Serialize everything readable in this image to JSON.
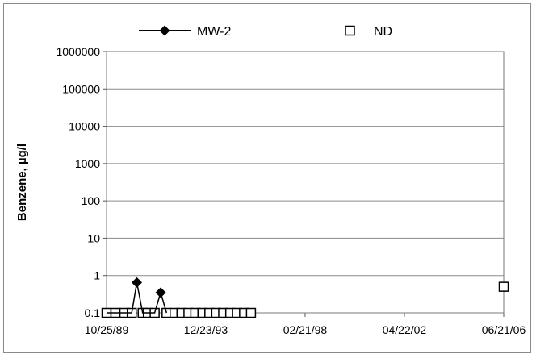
{
  "chart_data": {
    "type": "line",
    "y_scale": "log",
    "ylabel": "Benzene, µg/l",
    "xlabel": "",
    "xlim": [
      "1989-10-25",
      "2006-06-21"
    ],
    "ylim": [
      0.1,
      1000000
    ],
    "y_ticks": [
      0.1,
      1,
      10,
      100,
      1000,
      10000,
      100000,
      1000000
    ],
    "y_tick_labels": [
      "0.1",
      "1",
      "10",
      "100",
      "1000",
      "10000",
      "100000",
      "1000000"
    ],
    "x_ticks": [
      "1989-10-25",
      "1993-12-23",
      "1998-02-21",
      "2002-04-22",
      "2006-06-21"
    ],
    "x_tick_labels": [
      "10/25/89",
      "12/23/93",
      "02/21/98",
      "04/22/02",
      "06/21/06"
    ],
    "grid": "horizontal",
    "legend_position": "top",
    "series": [
      {
        "name": "MW-2",
        "marker": "diamond",
        "color": "#000000",
        "points": [
          {
            "x": "1989-10-25",
            "y": 0.1
          },
          {
            "x": "1990-03-10",
            "y": 0.1
          },
          {
            "x": "1990-07-25",
            "y": 0.1
          },
          {
            "x": "1990-11-15",
            "y": 0.1
          },
          {
            "x": "1991-02-01",
            "y": 0.65
          },
          {
            "x": "1991-05-01",
            "y": 0.1
          },
          {
            "x": "1991-07-20",
            "y": 0.1
          },
          {
            "x": "1991-11-01",
            "y": 0.1
          },
          {
            "x": "1992-02-01",
            "y": 0.35
          },
          {
            "x": "1992-05-01",
            "y": 0.1
          }
        ]
      },
      {
        "name": "ND",
        "marker": "square-open",
        "color": "#000000",
        "points": [
          {
            "x": "1989-10-25",
            "y": 0.1
          },
          {
            "x": "1990-03-10",
            "y": 0.1
          },
          {
            "x": "1990-07-25",
            "y": 0.1
          },
          {
            "x": "1990-11-15",
            "y": 0.1
          },
          {
            "x": "1991-05-01",
            "y": 0.1
          },
          {
            "x": "1991-07-20",
            "y": 0.1
          },
          {
            "x": "1991-11-01",
            "y": 0.1
          },
          {
            "x": "1992-05-01",
            "y": 0.1
          },
          {
            "x": "1992-09-01",
            "y": 0.1
          },
          {
            "x": "1992-12-15",
            "y": 0.1
          },
          {
            "x": "1993-04-01",
            "y": 0.1
          },
          {
            "x": "1993-07-15",
            "y": 0.1
          },
          {
            "x": "1993-11-01",
            "y": 0.1
          },
          {
            "x": "1994-02-15",
            "y": 0.1
          },
          {
            "x": "1994-06-01",
            "y": 0.1
          },
          {
            "x": "1994-09-15",
            "y": 0.1
          },
          {
            "x": "1995-01-01",
            "y": 0.1
          },
          {
            "x": "1995-04-15",
            "y": 0.1
          },
          {
            "x": "1995-08-01",
            "y": 0.1
          },
          {
            "x": "1995-11-15",
            "y": 0.1
          },
          {
            "x": "2006-06-21",
            "y": 0.5
          }
        ]
      }
    ]
  }
}
